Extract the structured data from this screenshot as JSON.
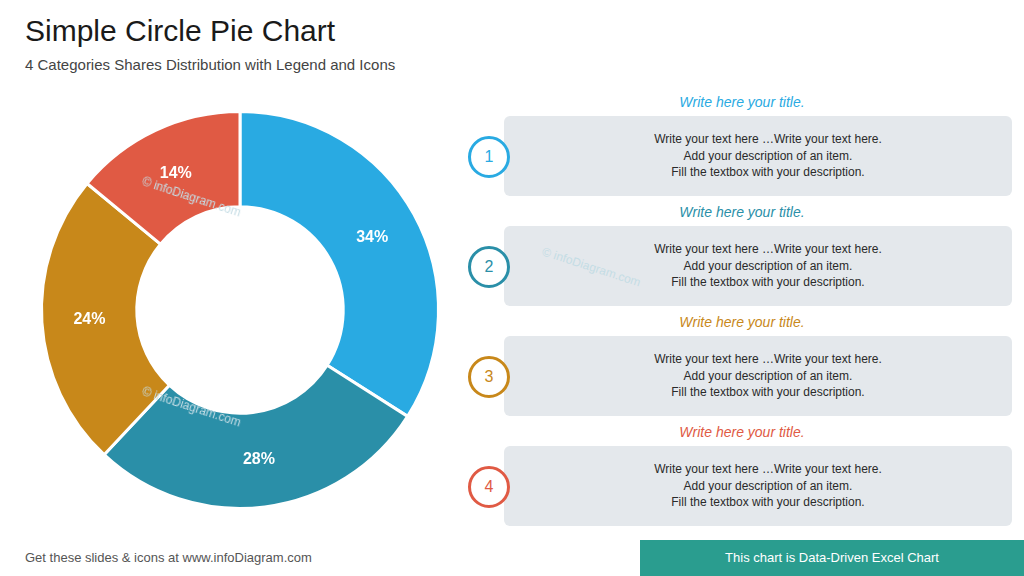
{
  "chart_data": {
    "type": "pie",
    "title": "Simple Circle Pie Chart",
    "subtitle": "4 Categories Shares Distribution with Legend and Icons",
    "categories": [
      "1",
      "2",
      "3",
      "4"
    ],
    "values": [
      34,
      28,
      24,
      14
    ],
    "value_labels": [
      "34%",
      "28%",
      "24%",
      "14%"
    ],
    "data_labels": true,
    "colors": [
      "#29aae2",
      "#2a8fa8",
      "#c8881a",
      "#e05a44"
    ],
    "annotations": [
      {
        "title": "Write here your title.",
        "text": "Write your text here …Write your text here.\nAdd your description of an item.\nFill the textbox with your description."
      },
      {
        "title": "Write here your title.",
        "text": "Write your text here …Write your text here.\nAdd your description of an item.\nFill the textbox with your description."
      },
      {
        "title": "Write here your title.",
        "text": "Write your text here …Write your text here.\nAdd your description of an item.\nFill the textbox with your description."
      },
      {
        "title": "Write here your title.",
        "text": "Write your text here …Write your text here.\nAdd your description of an item.\nFill the textbox with your description."
      },
      {
        "text": "© infoDiagram.com"
      },
      {
        "text": "© infoDiagram.com"
      },
      {
        "text": "© infoDiagram.com"
      },
      {
        "text": "Get these slides & icons at www.infoDiagram.com"
      },
      {
        "text": "This chart is Data-Driven Excel Chart"
      }
    ]
  }
}
